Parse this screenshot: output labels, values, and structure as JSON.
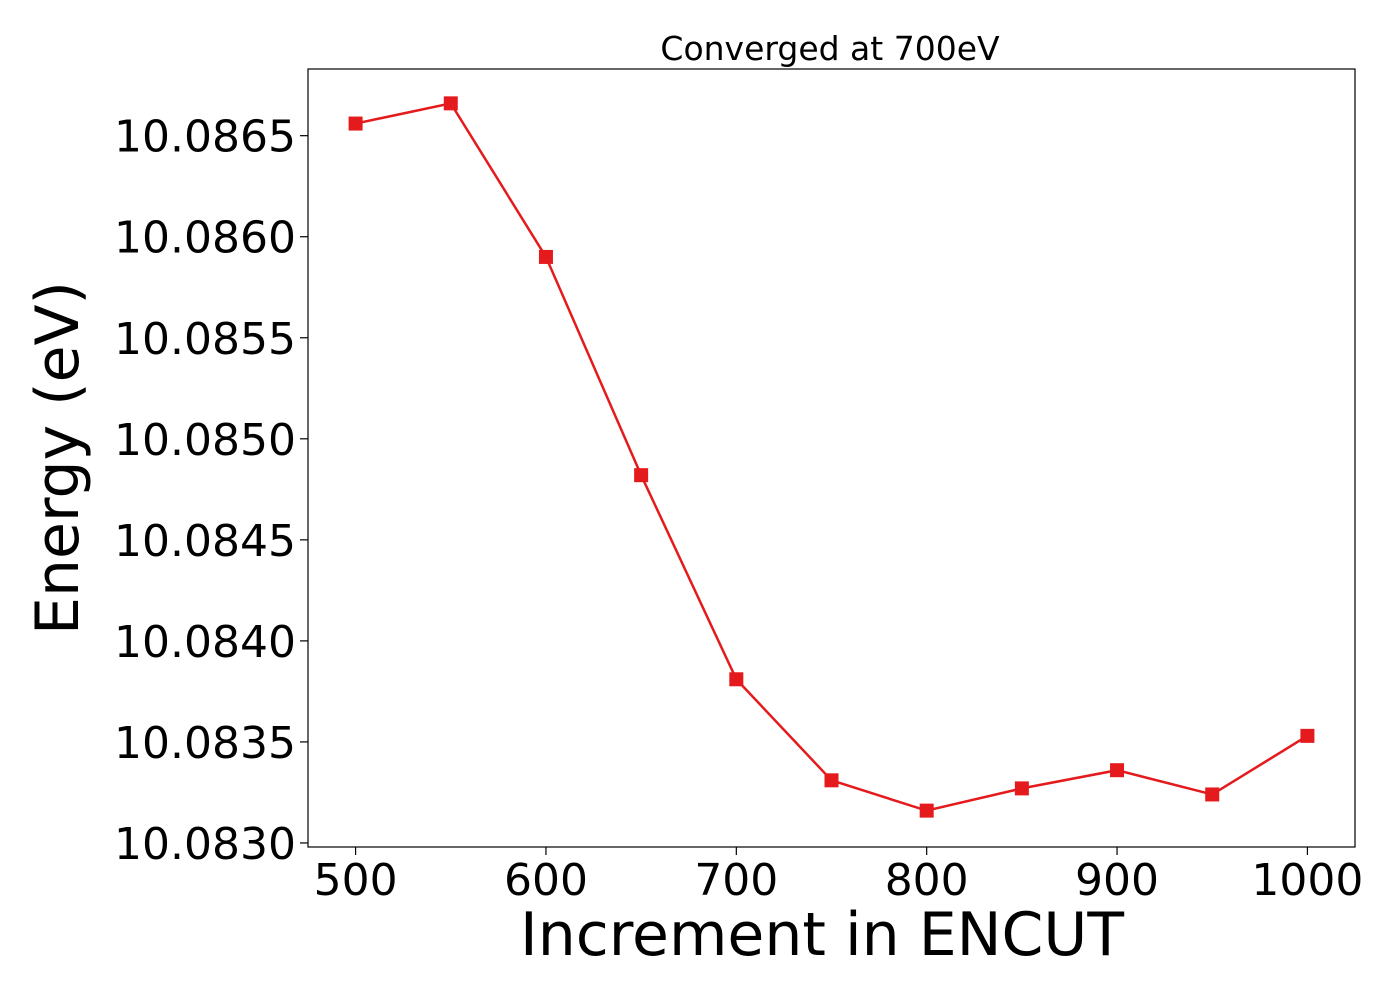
{
  "chart_data": {
    "type": "line",
    "title": "Converged at 700eV",
    "xlabel": "Increment in ENCUT",
    "ylabel": "Energy (eV)",
    "xlim": [
      475,
      1025
    ],
    "ylim": [
      10.08298,
      10.08683
    ],
    "x_ticks": [
      500,
      600,
      700,
      800,
      900,
      1000
    ],
    "y_ticks": [
      "10.0830",
      "10.0835",
      "10.0840",
      "10.0845",
      "10.0850",
      "10.0855",
      "10.0860",
      "10.0865"
    ],
    "grid": false,
    "legend": "none",
    "series": [
      {
        "color": "#e41a1c",
        "marker": "square",
        "x": [
          500,
          550,
          600,
          650,
          700,
          750,
          800,
          850,
          900,
          950,
          1000
        ],
        "y": [
          10.08656,
          10.08666,
          10.0859,
          10.08482,
          10.08381,
          10.08331,
          10.08316,
          10.08327,
          10.08336,
          10.08324,
          10.08353
        ]
      }
    ]
  }
}
